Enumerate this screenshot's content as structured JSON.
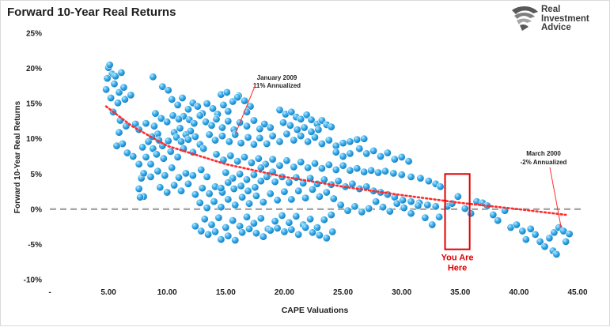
{
  "title": "Forward 10-Year Real Returns",
  "logo": {
    "line1": "Real",
    "line2": "Investment",
    "line3": "Advice",
    "icon": "eagle-head-icon"
  },
  "colors": {
    "dots": "#2ea3e6",
    "trendline": "#ff2a2a",
    "zero_line": "#a6a6a6",
    "highlight_box": "#e00000",
    "annotation_text": "#1f1f1f",
    "highlight_text": "#e00000"
  },
  "chart_data": {
    "type": "scatter",
    "title": "Forward 10-Year Real Returns",
    "xlabel": "CAPE Valuations",
    "ylabel": "Forward 10-Year Real Returns",
    "xlim": [
      0,
      45
    ],
    "ylim": [
      -10,
      25
    ],
    "x_ticks": [
      {
        "value": 0,
        "label": "-"
      },
      {
        "value": 5,
        "label": "5.00"
      },
      {
        "value": 10,
        "label": "10.00"
      },
      {
        "value": 15,
        "label": "15.00"
      },
      {
        "value": 20,
        "label": "20.00"
      },
      {
        "value": 25,
        "label": "25.00"
      },
      {
        "value": 30,
        "label": "30.00"
      },
      {
        "value": 35,
        "label": "35.00"
      },
      {
        "value": 40,
        "label": "40.00"
      },
      {
        "value": 45,
        "label": "45.00"
      }
    ],
    "y_ticks": [
      {
        "value": 25,
        "label": "25%"
      },
      {
        "value": 20,
        "label": "20%"
      },
      {
        "value": 15,
        "label": "15%"
      },
      {
        "value": 10,
        "label": "10%"
      },
      {
        "value": 5,
        "label": "5%"
      },
      {
        "value": 0,
        "label": "0%"
      },
      {
        "value": -5,
        "label": "-5%"
      },
      {
        "value": -10,
        "label": "-10%"
      }
    ],
    "grid": false,
    "legend": "none",
    "reference_line": {
      "y": 0,
      "style": "dashed"
    },
    "trendline": {
      "style": "dotted",
      "points": [
        [
          4.8,
          14.6
        ],
        [
          7,
          11.8
        ],
        [
          10,
          9.0
        ],
        [
          15,
          6.4
        ],
        [
          20,
          4.6
        ],
        [
          25,
          3.2
        ],
        [
          30,
          2.0
        ],
        [
          35,
          0.9
        ],
        [
          40,
          0.0
        ],
        [
          44,
          -0.8
        ]
      ]
    },
    "highlight_box": {
      "x": [
        33.7,
        35.8
      ],
      "y": [
        -5.7,
        5.0
      ],
      "label_line1": "You Are",
      "label_line2": "Here"
    },
    "annotations": [
      {
        "line1": "January 2009",
        "line2": "11% Annualized",
        "point": [
          15.8,
          10.6
        ]
      },
      {
        "line1": "March 2000",
        "line2": "-2% Annualized",
        "point": [
          43.6,
          -2.6
        ]
      }
    ],
    "points": [
      [
        5.0,
        20.1
      ],
      [
        5.1,
        20.5
      ],
      [
        5.3,
        19.2
      ],
      [
        4.9,
        18.6
      ],
      [
        5.6,
        18.9
      ],
      [
        6.1,
        19.4
      ],
      [
        5.5,
        17.8
      ],
      [
        4.8,
        17.0
      ],
      [
        5.9,
        16.6
      ],
      [
        6.3,
        17.3
      ],
      [
        5.2,
        15.8
      ],
      [
        5.8,
        15.1
      ],
      [
        6.4,
        15.6
      ],
      [
        6.9,
        16.2
      ],
      [
        5.4,
        13.8
      ],
      [
        6.0,
        12.6
      ],
      [
        6.5,
        11.8
      ],
      [
        5.9,
        10.9
      ],
      [
        6.2,
        9.3
      ],
      [
        5.7,
        9.0
      ],
      [
        6.6,
        8.0
      ],
      [
        7.1,
        7.5
      ],
      [
        7.6,
        6.4
      ],
      [
        7.8,
        4.4
      ],
      [
        7.6,
        2.9
      ],
      [
        8.0,
        1.8
      ],
      [
        7.7,
        1.7
      ],
      [
        7.3,
        12.1
      ],
      [
        7.6,
        11.3
      ],
      [
        8.2,
        12.2
      ],
      [
        8.9,
        11.8
      ],
      [
        9.2,
        10.7
      ],
      [
        8.4,
        9.6
      ],
      [
        7.9,
        8.8
      ],
      [
        8.8,
        8.6
      ],
      [
        9.6,
        9.0
      ],
      [
        10.1,
        9.7
      ],
      [
        10.6,
        10.9
      ],
      [
        11.1,
        11.5
      ],
      [
        11.6,
        10.6
      ],
      [
        12.0,
        11.1
      ],
      [
        8.2,
        7.4
      ],
      [
        8.6,
        6.4
      ],
      [
        9.1,
        7.8
      ],
      [
        9.7,
        7.2
      ],
      [
        10.3,
        8.2
      ],
      [
        10.9,
        7.4
      ],
      [
        11.4,
        8.6
      ],
      [
        12.2,
        8.1
      ],
      [
        12.8,
        9.2
      ],
      [
        13.1,
        8.6
      ],
      [
        8.0,
        5.1
      ],
      [
        8.6,
        4.6
      ],
      [
        9.2,
        5.4
      ],
      [
        9.8,
        4.8
      ],
      [
        10.4,
        5.9
      ],
      [
        11.0,
        4.5
      ],
      [
        11.6,
        5.1
      ],
      [
        12.2,
        4.8
      ],
      [
        12.9,
        5.6
      ],
      [
        13.4,
        4.6
      ],
      [
        9.4,
        3.1
      ],
      [
        10.0,
        2.4
      ],
      [
        10.6,
        3.4
      ],
      [
        11.2,
        2.6
      ],
      [
        11.8,
        3.6
      ],
      [
        12.4,
        2.1
      ],
      [
        13.0,
        3.0
      ],
      [
        13.6,
        2.2
      ],
      [
        14.1,
        3.2
      ],
      [
        14.7,
        2.4
      ],
      [
        8.8,
        18.8
      ],
      [
        9.6,
        17.4
      ],
      [
        10.1,
        16.9
      ],
      [
        10.4,
        15.6
      ],
      [
        10.9,
        14.8
      ],
      [
        11.3,
        15.8
      ],
      [
        11.8,
        14.2
      ],
      [
        12.2,
        15.1
      ],
      [
        12.6,
        14.6
      ],
      [
        13.0,
        13.6
      ],
      [
        13.4,
        15.0
      ],
      [
        13.9,
        14.3
      ],
      [
        14.3,
        13.5
      ],
      [
        14.8,
        14.8
      ],
      [
        15.2,
        13.9
      ],
      [
        15.6,
        15.3
      ],
      [
        16.1,
        16.1
      ],
      [
        16.6,
        15.4
      ],
      [
        17.1,
        14.6
      ],
      [
        14.6,
        16.3
      ],
      [
        15.1,
        16.6
      ],
      [
        16.0,
        15.9
      ],
      [
        16.8,
        13.8
      ],
      [
        11.4,
        13.2
      ],
      [
        11.9,
        12.7
      ],
      [
        12.3,
        12.2
      ],
      [
        12.8,
        13.3
      ],
      [
        13.3,
        12.4
      ],
      [
        13.8,
        11.9
      ],
      [
        14.2,
        12.8
      ],
      [
        14.7,
        11.6
      ],
      [
        15.2,
        12.5
      ],
      [
        15.7,
        11.3
      ],
      [
        16.2,
        12.3
      ],
      [
        16.8,
        11.8
      ],
      [
        17.4,
        12.6
      ],
      [
        17.9,
        11.4
      ],
      [
        18.3,
        12.1
      ],
      [
        18.8,
        11.6
      ],
      [
        13.6,
        10.6
      ],
      [
        14.1,
        9.8
      ],
      [
        14.7,
        10.4
      ],
      [
        15.3,
        9.6
      ],
      [
        15.8,
        10.6
      ],
      [
        16.3,
        9.4
      ],
      [
        16.9,
        10.2
      ],
      [
        17.4,
        9.2
      ],
      [
        17.9,
        10.1
      ],
      [
        18.5,
        9.3
      ],
      [
        19.0,
        10.4
      ],
      [
        19.6,
        9.6
      ],
      [
        20.2,
        10.7
      ],
      [
        20.8,
        9.8
      ],
      [
        21.4,
        10.4
      ],
      [
        22.0,
        9.6
      ],
      [
        22.6,
        10.2
      ],
      [
        23.2,
        9.3
      ],
      [
        23.8,
        9.8
      ],
      [
        24.4,
        9.0
      ],
      [
        25.0,
        9.4
      ],
      [
        25.6,
        9.6
      ],
      [
        26.2,
        9.9
      ],
      [
        26.8,
        10.0
      ],
      [
        19.6,
        14.1
      ],
      [
        20.1,
        13.5
      ],
      [
        20.6,
        13.8
      ],
      [
        21.0,
        13.1
      ],
      [
        21.4,
        12.8
      ],
      [
        21.9,
        13.4
      ],
      [
        22.3,
        12.7
      ],
      [
        22.8,
        12.1
      ],
      [
        23.2,
        12.6
      ],
      [
        23.6,
        12.0
      ],
      [
        24.0,
        11.7
      ],
      [
        19.9,
        12.3
      ],
      [
        20.5,
        11.9
      ],
      [
        21.1,
        11.3
      ],
      [
        21.7,
        11.6
      ],
      [
        22.3,
        11.0
      ],
      [
        22.9,
        11.3
      ],
      [
        14.2,
        7.8
      ],
      [
        14.8,
        7.0
      ],
      [
        15.4,
        7.6
      ],
      [
        16.0,
        6.8
      ],
      [
        16.6,
        7.4
      ],
      [
        17.2,
        6.6
      ],
      [
        17.8,
        7.2
      ],
      [
        18.4,
        6.4
      ],
      [
        19.0,
        7.1
      ],
      [
        19.6,
        6.2
      ],
      [
        20.2,
        6.9
      ],
      [
        20.8,
        6.0
      ],
      [
        21.4,
        6.7
      ],
      [
        22.0,
        5.9
      ],
      [
        22.6,
        6.5
      ],
      [
        23.2,
        5.8
      ],
      [
        23.8,
        6.3
      ],
      [
        24.4,
        5.6
      ],
      [
        25.0,
        6.2
      ],
      [
        25.6,
        5.5
      ],
      [
        26.2,
        5.8
      ],
      [
        26.8,
        5.3
      ],
      [
        27.4,
        5.5
      ],
      [
        28.0,
        5.2
      ],
      [
        28.6,
        5.4
      ],
      [
        29.3,
        5.1
      ],
      [
        30.0,
        4.9
      ],
      [
        30.8,
        4.6
      ],
      [
        31.6,
        4.4
      ],
      [
        32.3,
        4.0
      ],
      [
        32.9,
        3.6
      ],
      [
        33.3,
        3.2
      ],
      [
        15.0,
        5.2
      ],
      [
        15.6,
        4.4
      ],
      [
        16.2,
        5.0
      ],
      [
        16.8,
        4.2
      ],
      [
        17.4,
        4.9
      ],
      [
        18.0,
        4.0
      ],
      [
        18.6,
        4.8
      ],
      [
        19.2,
        3.9
      ],
      [
        19.8,
        4.6
      ],
      [
        20.4,
        3.8
      ],
      [
        21.0,
        4.5
      ],
      [
        21.6,
        3.7
      ],
      [
        22.2,
        4.4
      ],
      [
        22.8,
        3.6
      ],
      [
        23.4,
        4.2
      ],
      [
        24.0,
        3.5
      ],
      [
        24.6,
        4.0
      ],
      [
        25.2,
        3.2
      ],
      [
        25.8,
        3.6
      ],
      [
        26.4,
        2.9
      ],
      [
        27.0,
        3.2
      ],
      [
        27.6,
        2.6
      ],
      [
        28.2,
        2.4
      ],
      [
        28.8,
        2.1
      ],
      [
        29.4,
        1.7
      ],
      [
        30.1,
        1.3
      ],
      [
        30.8,
        1.1
      ],
      [
        31.5,
        0.9
      ],
      [
        32.2,
        0.6
      ],
      [
        32.9,
        0.4
      ],
      [
        12.8,
        0.9
      ],
      [
        13.4,
        0.2
      ],
      [
        14.0,
        1.1
      ],
      [
        14.6,
        0.3
      ],
      [
        15.2,
        1.4
      ],
      [
        15.8,
        0.6
      ],
      [
        16.4,
        1.7
      ],
      [
        17.0,
        0.8
      ],
      [
        17.6,
        1.9
      ],
      [
        18.2,
        1.0
      ],
      [
        18.8,
        2.2
      ],
      [
        19.4,
        1.3
      ],
      [
        20.0,
        2.5
      ],
      [
        20.6,
        1.4
      ],
      [
        21.2,
        2.6
      ],
      [
        21.8,
        1.6
      ],
      [
        22.4,
        2.8
      ],
      [
        23.0,
        1.8
      ],
      [
        23.6,
        2.4
      ],
      [
        24.2,
        1.5
      ],
      [
        13.2,
        -1.4
      ],
      [
        13.8,
        -2.2
      ],
      [
        14.4,
        -1.2
      ],
      [
        15.0,
        -2.6
      ],
      [
        15.6,
        -1.6
      ],
      [
        16.2,
        -2.4
      ],
      [
        16.8,
        -1.1
      ],
      [
        17.4,
        -2.0
      ],
      [
        18.0,
        -1.3
      ],
      [
        18.6,
        -2.8
      ],
      [
        19.2,
        -1.7
      ],
      [
        19.8,
        -0.9
      ],
      [
        20.4,
        -1.9
      ],
      [
        21.0,
        -1.0
      ],
      [
        21.6,
        -2.2
      ],
      [
        22.2,
        -1.4
      ],
      [
        22.8,
        -2.6
      ],
      [
        23.4,
        -1.5
      ],
      [
        24.0,
        -0.8
      ],
      [
        12.4,
        -2.4
      ],
      [
        12.9,
        -3.1
      ],
      [
        13.5,
        -3.6
      ],
      [
        14.1,
        -3.2
      ],
      [
        14.6,
        -4.3
      ],
      [
        15.2,
        -3.8
      ],
      [
        15.8,
        -4.4
      ],
      [
        16.4,
        -3.3
      ],
      [
        17.0,
        -2.8
      ],
      [
        17.6,
        -3.4
      ],
      [
        18.2,
        -3.9
      ],
      [
        18.8,
        -3.0
      ],
      [
        19.4,
        -2.7
      ],
      [
        20.0,
        -3.2
      ],
      [
        20.6,
        -2.9
      ],
      [
        21.2,
        -3.6
      ],
      [
        21.8,
        -2.6
      ],
      [
        22.4,
        -3.3
      ],
      [
        23.0,
        -3.7
      ],
      [
        23.6,
        -4.1
      ],
      [
        24.1,
        -3.2
      ],
      [
        24.8,
        0.6
      ],
      [
        25.4,
        -0.2
      ],
      [
        26.0,
        0.4
      ],
      [
        26.6,
        -0.4
      ],
      [
        27.2,
        0.1
      ],
      [
        27.8,
        1.1
      ],
      [
        28.4,
        0.3
      ],
      [
        29.0,
        -0.3
      ],
      [
        29.6,
        0.8
      ],
      [
        30.2,
        0.2
      ],
      [
        30.8,
        -0.6
      ],
      [
        31.4,
        0.5
      ],
      [
        32.0,
        -1.2
      ],
      [
        32.6,
        -2.2
      ],
      [
        33.2,
        -1.1
      ],
      [
        33.9,
        0.4
      ],
      [
        34.3,
        0.8
      ],
      [
        34.8,
        1.8
      ],
      [
        35.4,
        0.1
      ],
      [
        35.9,
        -0.6
      ],
      [
        36.4,
        1.1
      ],
      [
        36.9,
        0.9
      ],
      [
        37.3,
        0.5
      ],
      [
        37.8,
        -0.8
      ],
      [
        38.2,
        -1.6
      ],
      [
        38.8,
        -0.2
      ],
      [
        39.3,
        -2.6
      ],
      [
        39.8,
        -2.2
      ],
      [
        40.3,
        -3.1
      ],
      [
        40.6,
        -4.3
      ],
      [
        41.0,
        -2.8
      ],
      [
        41.4,
        -3.6
      ],
      [
        41.8,
        -4.6
      ],
      [
        42.2,
        -5.3
      ],
      [
        42.6,
        -4.1
      ],
      [
        43.0,
        -3.3
      ],
      [
        43.4,
        -2.6
      ],
      [
        43.8,
        -3.1
      ],
      [
        44.3,
        -3.5
      ],
      [
        42.9,
        -5.9
      ],
      [
        43.2,
        -6.4
      ],
      [
        44.0,
        -4.6
      ],
      [
        26.4,
        8.6
      ],
      [
        27.0,
        7.9
      ],
      [
        27.6,
        8.3
      ],
      [
        28.2,
        7.5
      ],
      [
        28.8,
        8.0
      ],
      [
        29.4,
        7.1
      ],
      [
        30.0,
        7.4
      ],
      [
        30.6,
        6.8
      ],
      [
        24.4,
        8.1
      ],
      [
        25.0,
        7.5
      ],
      [
        25.6,
        7.9
      ],
      [
        18.0,
        5.9
      ],
      [
        18.5,
        4.6
      ],
      [
        19.0,
        5.3
      ],
      [
        17.5,
        3.1
      ],
      [
        16.9,
        2.6
      ],
      [
        16.3,
        3.3
      ],
      [
        15.7,
        2.9
      ],
      [
        15.2,
        3.8
      ],
      [
        14.6,
        3.0
      ],
      [
        9.0,
        13.6
      ],
      [
        9.5,
        12.9
      ],
      [
        10.0,
        12.4
      ],
      [
        10.5,
        13.3
      ],
      [
        11.0,
        12.8
      ],
      [
        8.7,
        10.3
      ],
      [
        9.3,
        9.8
      ],
      [
        10.8,
        10.2
      ],
      [
        11.2,
        9.6
      ],
      [
        11.8,
        9.9
      ],
      [
        12.4,
        10.3
      ]
    ]
  }
}
